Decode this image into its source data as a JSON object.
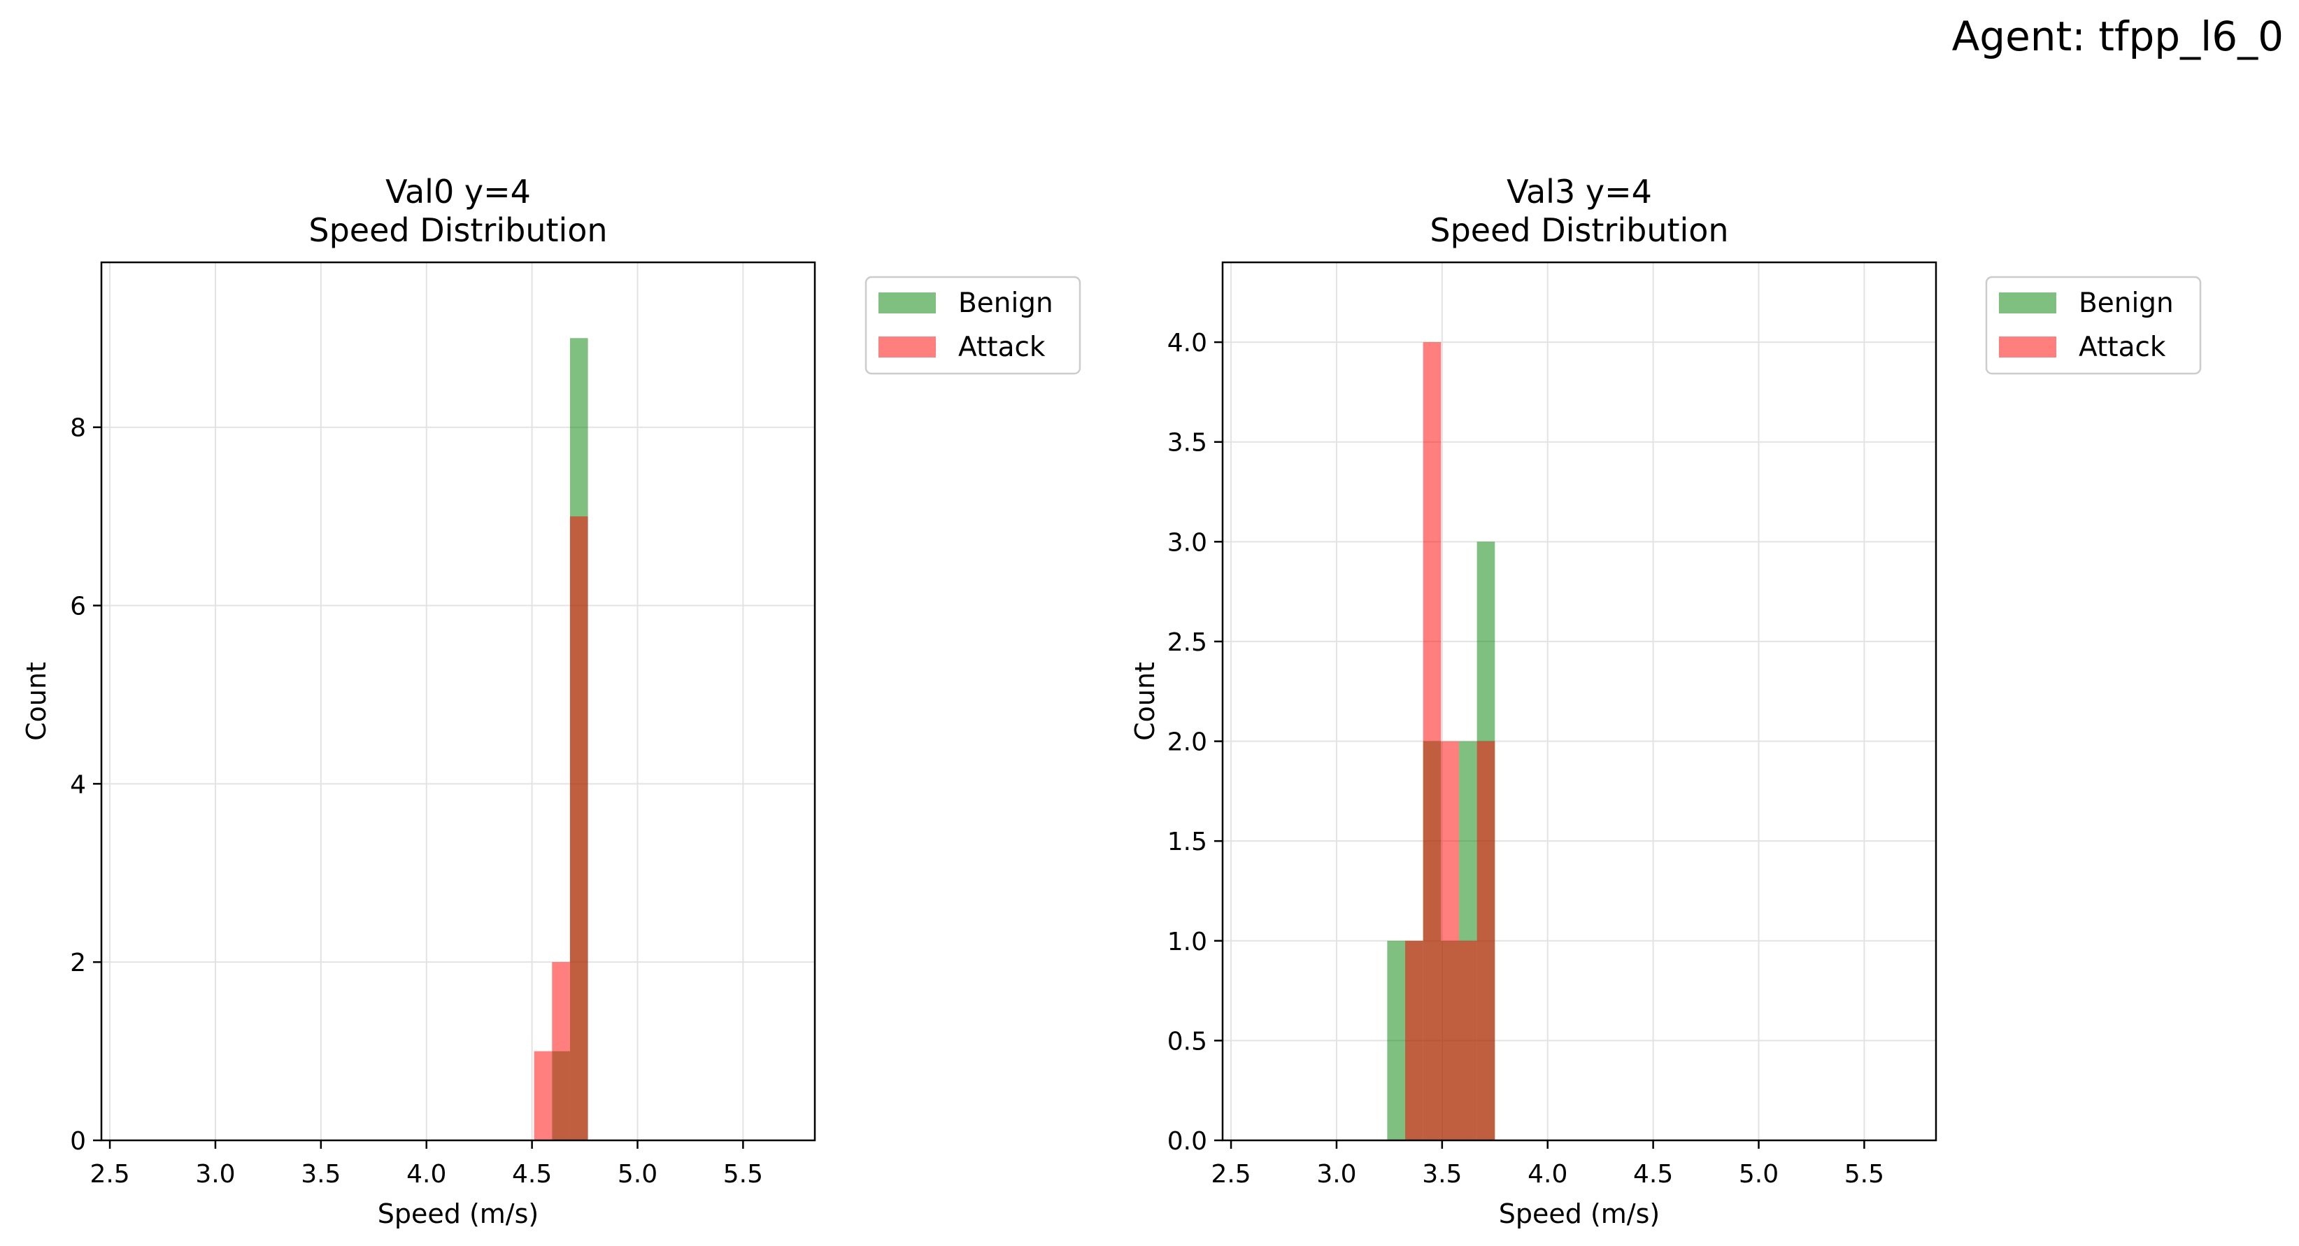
{
  "figure": {
    "suptitle": "Agent: tfpp_l6_0"
  },
  "colors": {
    "benign": "#008000",
    "attack": "#ff0000",
    "grid": "#e3e3e3"
  },
  "chart_data": [
    {
      "type": "histogram",
      "title": "Val0 y=4",
      "subtitle": "Speed Distribution",
      "xlabel": "Speed (m/s)",
      "ylabel": "Count",
      "xlim": [
        2.46,
        5.84
      ],
      "ylim": [
        0,
        9.85
      ],
      "xticks": [
        2.5,
        3.0,
        3.5,
        4.0,
        4.5,
        5.0,
        5.5
      ],
      "xtick_labels": [
        "2.5",
        "3.0",
        "3.5",
        "4.0",
        "4.5",
        "5.0",
        "5.5"
      ],
      "yticks": [
        0,
        2,
        4,
        6,
        8
      ],
      "ytick_labels": [
        "0",
        "2",
        "4",
        "6",
        "8"
      ],
      "grid": true,
      "legend_position": "outside-top-right",
      "series": [
        {
          "name": "Benign",
          "color": "#008000",
          "alpha": 0.5,
          "bins": [
            {
              "x0": 4.595,
              "x1": 4.68,
              "count": 1
            },
            {
              "x0": 4.68,
              "x1": 4.765,
              "count": 9
            }
          ]
        },
        {
          "name": "Attack",
          "color": "#ff0000",
          "alpha": 0.5,
          "bins": [
            {
              "x0": 4.51,
              "x1": 4.595,
              "count": 1
            },
            {
              "x0": 4.595,
              "x1": 4.68,
              "count": 2
            },
            {
              "x0": 4.68,
              "x1": 4.765,
              "count": 7
            }
          ]
        }
      ]
    },
    {
      "type": "histogram",
      "title": "Val3 y=4",
      "subtitle": "Speed Distribution",
      "xlabel": "Speed (m/s)",
      "ylabel": "Count",
      "xlim": [
        2.46,
        5.84
      ],
      "ylim": [
        0,
        4.4
      ],
      "xticks": [
        2.5,
        3.0,
        3.5,
        4.0,
        4.5,
        5.0,
        5.5
      ],
      "xtick_labels": [
        "2.5",
        "3.0",
        "3.5",
        "4.0",
        "4.5",
        "5.0",
        "5.5"
      ],
      "yticks": [
        0,
        0.5,
        1.0,
        1.5,
        2.0,
        2.5,
        3.0,
        3.5,
        4.0
      ],
      "ytick_labels": [
        "0.0",
        "0.5",
        "1.0",
        "1.5",
        "2.0",
        "2.5",
        "3.0",
        "3.5",
        "4.0"
      ],
      "grid": true,
      "legend_position": "outside-top-right",
      "series": [
        {
          "name": "Benign",
          "color": "#008000",
          "alpha": 0.5,
          "bins": [
            {
              "x0": 3.24,
              "x1": 3.325,
              "count": 1
            },
            {
              "x0": 3.325,
              "x1": 3.41,
              "count": 1
            },
            {
              "x0": 3.41,
              "x1": 3.495,
              "count": 2
            },
            {
              "x0": 3.495,
              "x1": 3.58,
              "count": 1
            },
            {
              "x0": 3.58,
              "x1": 3.665,
              "count": 2
            },
            {
              "x0": 3.665,
              "x1": 3.75,
              "count": 3
            }
          ]
        },
        {
          "name": "Attack",
          "color": "#ff0000",
          "alpha": 0.5,
          "bins": [
            {
              "x0": 3.325,
              "x1": 3.41,
              "count": 1
            },
            {
              "x0": 3.41,
              "x1": 3.495,
              "count": 4
            },
            {
              "x0": 3.495,
              "x1": 3.58,
              "count": 2
            },
            {
              "x0": 3.58,
              "x1": 3.665,
              "count": 1
            },
            {
              "x0": 3.665,
              "x1": 3.75,
              "count": 2
            }
          ]
        }
      ]
    }
  ]
}
